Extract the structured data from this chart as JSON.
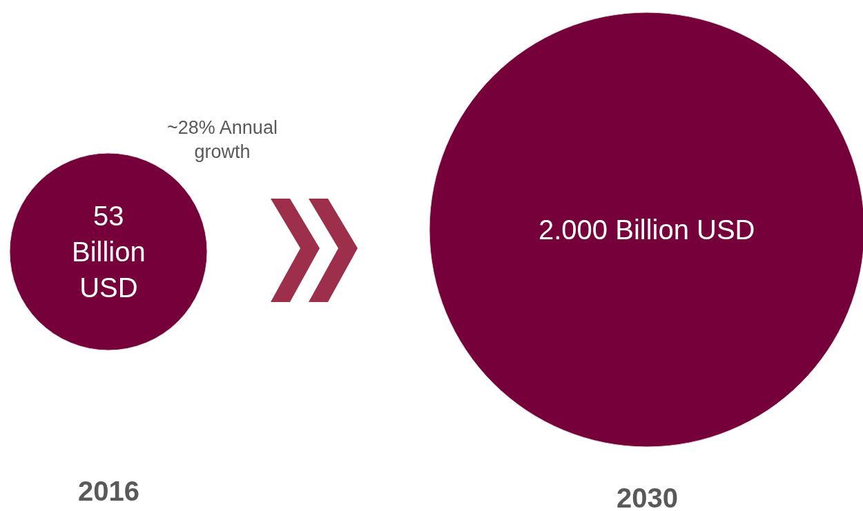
{
  "chart_data": {
    "type": "other",
    "categories": [
      "2016",
      "2030"
    ],
    "values": [
      53,
      2000
    ],
    "value_labels": [
      "53\nBillion\nUSD",
      "2.000 Billion USD"
    ],
    "colors": [
      "#75003a",
      "#75003a"
    ],
    "annotations": [
      "~28% Annual\ngrowth"
    ]
  }
}
